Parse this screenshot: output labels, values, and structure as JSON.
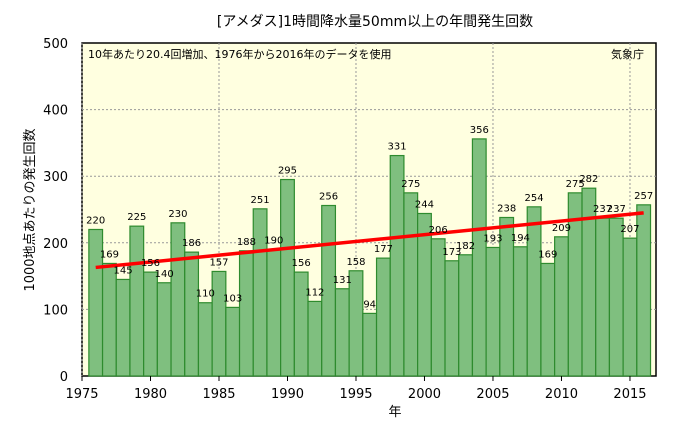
{
  "chart_data": {
    "type": "bar",
    "title": "[アメダス]1時間降水量50mm以上の年間発生回数",
    "annotation": "10年あたり20.4回増加、1976年から2016年のデータを使用",
    "source": "気象庁",
    "xlabel": "年",
    "ylabel": "1000地点あたりの発生回数",
    "ylim": [
      0,
      500
    ],
    "yticks": [
      0,
      100,
      200,
      300,
      400,
      500
    ],
    "xticks": [
      1975,
      1980,
      1985,
      1990,
      1995,
      2000,
      2005,
      2010,
      2015
    ],
    "grid": true,
    "x": [
      1976,
      1977,
      1978,
      1979,
      1980,
      1981,
      1982,
      1983,
      1984,
      1985,
      1986,
      1987,
      1988,
      1989,
      1990,
      1991,
      1992,
      1993,
      1994,
      1995,
      1996,
      1997,
      1998,
      1999,
      2000,
      2001,
      2002,
      2003,
      2004,
      2005,
      2006,
      2007,
      2008,
      2009,
      2010,
      2011,
      2012,
      2013,
      2014,
      2015,
      2016
    ],
    "values": [
      220,
      169,
      145,
      225,
      156,
      140,
      230,
      186,
      110,
      157,
      103,
      188,
      251,
      190,
      295,
      156,
      112,
      256,
      131,
      158,
      94,
      177,
      331,
      275,
      244,
      206,
      173,
      182,
      356,
      193,
      238,
      194,
      254,
      169,
      209,
      275,
      282,
      237,
      237,
      207,
      257
    ],
    "trend": {
      "start": [
        1976,
        163
      ],
      "end": [
        2016,
        245
      ],
      "color": "#ff0000"
    },
    "colors": {
      "bar": "#7fbf7f",
      "bar_edge": "#2e8b2e",
      "plot_bg": "#ffffe0"
    }
  }
}
